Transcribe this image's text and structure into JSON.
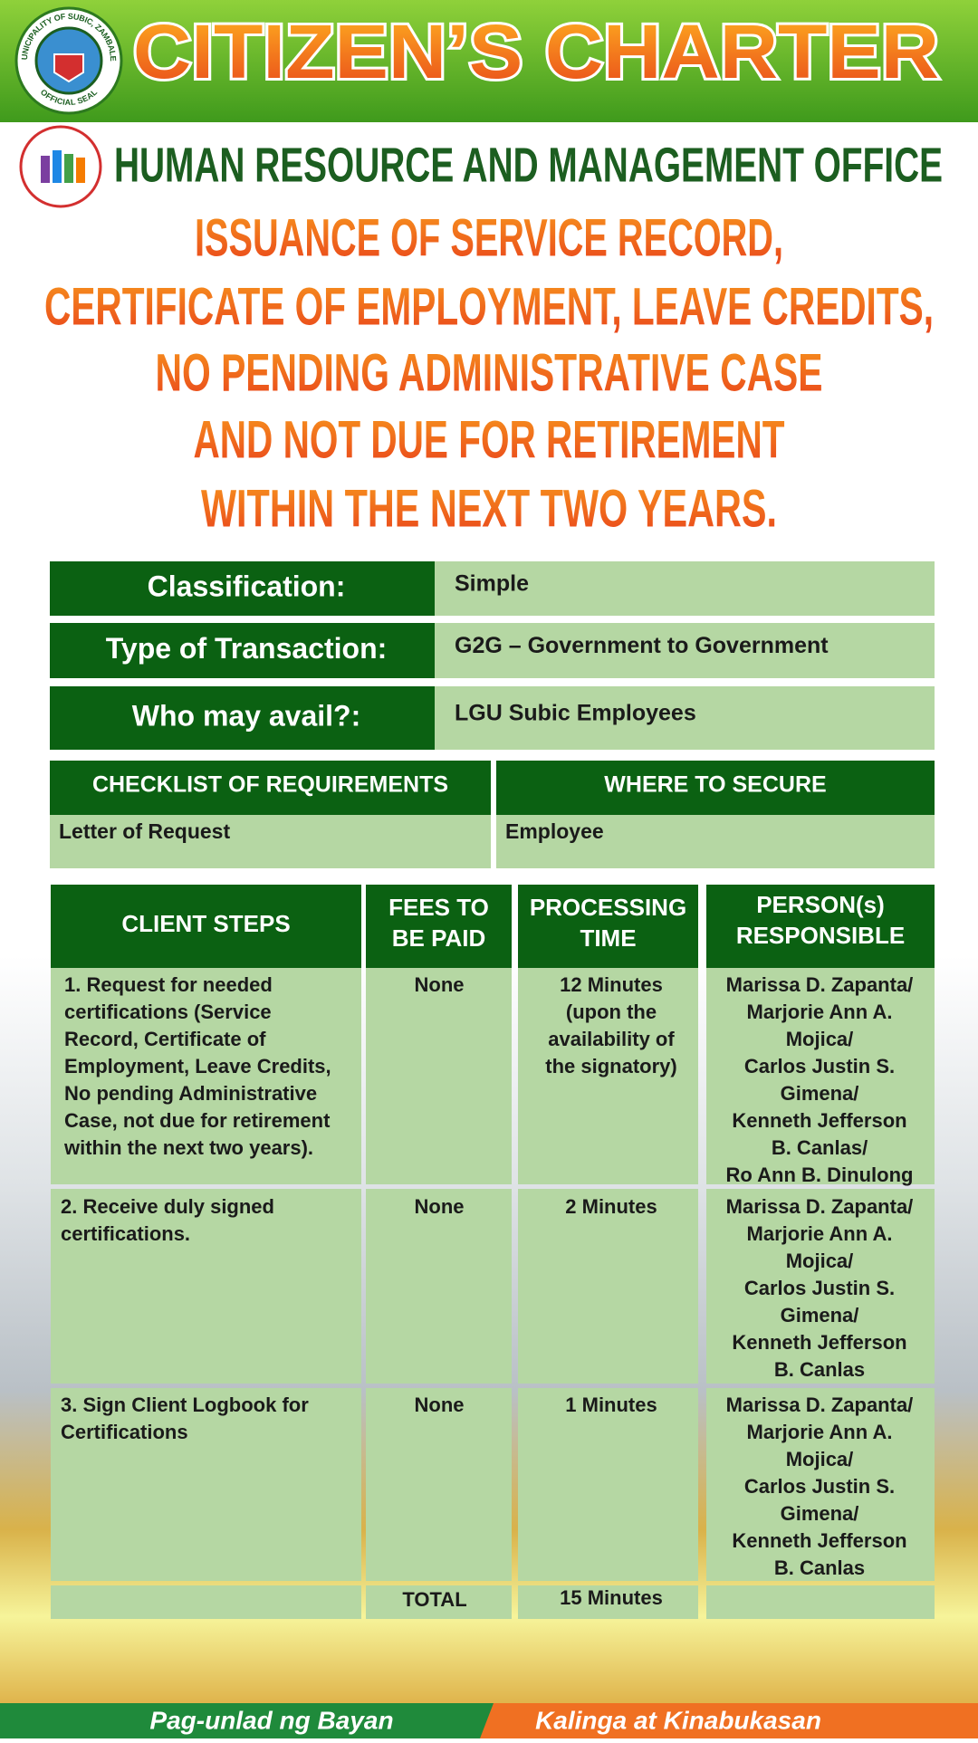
{
  "header": {
    "title": "CITIZEN’S CHARTER",
    "seal_text": "MUNICIPALITY OF SUBIC, ZAMBALES",
    "seal_label": "OFFICIAL SEAL"
  },
  "office": "HUMAN RESOURCE AND MANAGEMENT OFFICE",
  "service_title": [
    "ISSUANCE OF SERVICE RECORD,",
    "CERTIFICATE OF EMPLOYMENT, LEAVE CREDITS,",
    "NO PENDING ADMINISTRATIVE CASE",
    "AND NOT DUE FOR RETIREMENT",
    "WITHIN THE NEXT TWO YEARS."
  ],
  "info": [
    {
      "label": "Classification:",
      "value": "Simple"
    },
    {
      "label": "Type of Transaction:",
      "value": "G2G – Government to Government"
    },
    {
      "label": "Who may avail?:",
      "value": "LGU Subic Employees"
    }
  ],
  "requirements": {
    "headers": [
      "CHECKLIST OF REQUIREMENTS",
      "WHERE TO SECURE"
    ],
    "rows": [
      [
        "Letter of Request",
        "Employee"
      ]
    ]
  },
  "steps": {
    "headers": [
      [
        "CLIENT STEPS"
      ],
      [
        "FEES TO",
        "BE PAID"
      ],
      [
        "PROCESSING",
        "TIME"
      ],
      [
        "PERSON(s)",
        "RESPONSIBLE"
      ]
    ],
    "rows": [
      {
        "step": [
          "1. Request for needed",
          "certifications (Service",
          "Record, Certificate of",
          "Employment, Leave Credits,",
          "No pending Administrative",
          "Case, not due for retirement",
          "within the next two years)."
        ],
        "fees": "None",
        "time": [
          "12 Minutes",
          "(upon the",
          "availability of",
          "the signatory)"
        ],
        "persons": [
          "Marissa D. Zapanta/",
          "Marjorie Ann A.",
          "Mojica/",
          "Carlos Justin S.",
          "Gimena/",
          "Kenneth Jefferson",
          "B. Canlas/",
          "Ro Ann B. Dinulong"
        ]
      },
      {
        "step": [
          "2. Receive duly signed",
          "certifications."
        ],
        "fees": "None",
        "time": [
          "2 Minutes"
        ],
        "persons": [
          "Marissa D. Zapanta/",
          "Marjorie Ann A.",
          "Mojica/",
          "Carlos Justin S.",
          "Gimena/",
          "Kenneth Jefferson",
          "B. Canlas"
        ]
      },
      {
        "step": [
          "3. Sign Client Logbook for",
          "Certifications"
        ],
        "fees": "None",
        "time": [
          "1 Minutes"
        ],
        "persons": [
          "Marissa D. Zapanta/",
          "Marjorie Ann A.",
          "Mojica/",
          "Carlos Justin S.",
          "Gimena/",
          "Kenneth Jefferson",
          "B. Canlas"
        ]
      }
    ],
    "total": {
      "label": "TOTAL",
      "time": "15 Minutes"
    }
  },
  "footer": [
    "Pag-unlad ng Bayan",
    "Kalinga at Kinabukasan"
  ]
}
